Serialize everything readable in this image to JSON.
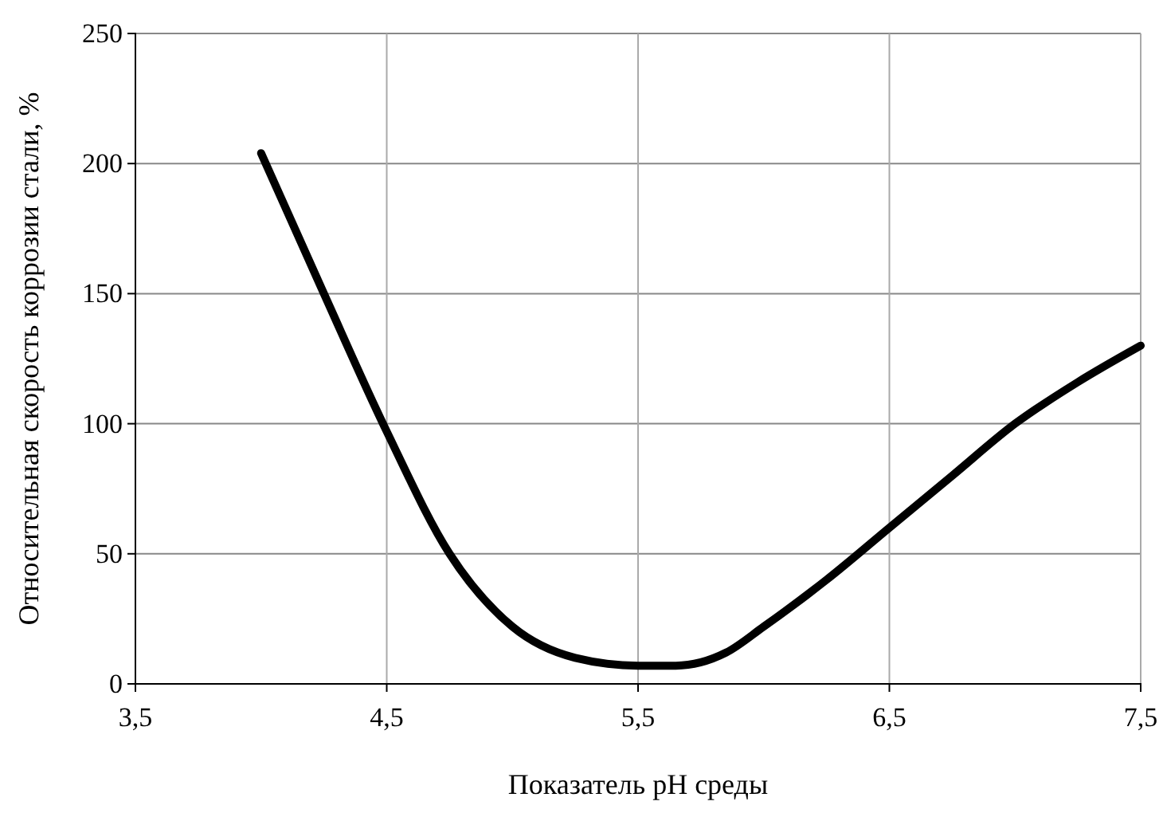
{
  "chart_data": {
    "type": "line",
    "xlabel": "Показатель pH среды",
    "ylabel": "Относительная скорость коррозии стали, %",
    "x": [
      4.0,
      4.25,
      4.5,
      4.75,
      5.0,
      5.25,
      5.5,
      5.65,
      5.85,
      6.0,
      6.25,
      6.5,
      6.75,
      7.0,
      7.25,
      7.5
    ],
    "series": [
      {
        "color": "#000000",
        "values": [
          204,
          150,
          97,
          50,
          22,
          10,
          7,
          7,
          12,
          22,
          40,
          60,
          80,
          100,
          116,
          130
        ]
      }
    ],
    "xlim": [
      3.5,
      7.5
    ],
    "xticks": [
      {
        "value": 3.5,
        "label": "3,5"
      },
      {
        "value": 4.5,
        "label": "4,5"
      },
      {
        "value": 5.5,
        "label": "5,5"
      },
      {
        "value": 6.5,
        "label": "6,5"
      },
      {
        "value": 7.5,
        "label": "7,5"
      }
    ],
    "ylim": [
      0,
      250
    ],
    "yticks": [
      0,
      50,
      100,
      150,
      200,
      250
    ],
    "grid": true,
    "marker": "none",
    "line_style": "solid"
  }
}
